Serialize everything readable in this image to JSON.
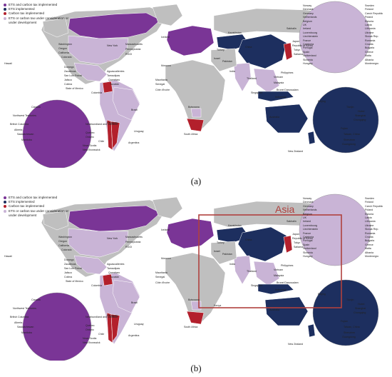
{
  "colors": {
    "ets_and_tax": "#7a3596",
    "ets": "#1d2f5f",
    "tax": "#b3202c",
    "consideration": "#c9b4d6",
    "none": "#bfbfbf",
    "ocean": "#ffffff",
    "asia_box": "#b0413e"
  },
  "legend": [
    {
      "key": "ets_and_tax",
      "label": "ETS and carbon tax implemented"
    },
    {
      "key": "ets",
      "label": "ETS implemented"
    },
    {
      "key": "tax",
      "label": "Carbon tax implemented"
    },
    {
      "key": "consideration",
      "label": "ETS or carbon tax under consideration or under development"
    }
  ],
  "panel_a": {
    "caption": "(a)",
    "labels": {
      "hawaii": "Hawaii",
      "washington": "Washington",
      "oregon": "Oregon",
      "california": "California",
      "colorado": "Colorado",
      "new_york": "New York",
      "massachusetts": "Massachusetts",
      "pennsylvania": "Pennsylvania",
      "rggi": "RGGI",
      "durango": "Durango",
      "zacatecas": "Zacatecas",
      "san_luis_potosi": "San Luis Potosí",
      "jalisco": "Jalisco",
      "colima": "Colima",
      "state_of_mexico": "State of Mexico",
      "aguascalientes": "Aguascalientes",
      "tamaulipas": "Tamaulipas",
      "queretaro": "Querétaro",
      "yucatan": "Yucatán",
      "colombia": "Colombia",
      "brazil": "Brazil",
      "paraguay": "Paraguay",
      "uruguay": "Uruguay",
      "chile": "Chile",
      "argentina": "Argentina",
      "iceland": "Iceland",
      "morocco": "Morocco",
      "mauritania": "Mauritania",
      "senegal": "Senegal",
      "cote_divoire": "Côte d'Ivoire",
      "botswana": "Botswana",
      "south_africa": "South Africa",
      "turkey": "Turkey",
      "israel": "Israel",
      "pakistan": "Pakistan",
      "india": "India",
      "kazakhstan": "Kazakhstan",
      "china": "China",
      "sakhalin": "Sakhalin",
      "japan": "Japan",
      "korea": "Republic of Korea",
      "tokyo": "Tokyo",
      "saitama": "Saitama",
      "thailand": "Thailand",
      "vietnam": "Vietnam",
      "philippines": "Philippines",
      "malaysia": "Malaysia",
      "singapore": "Singapore",
      "brunei": "Brunei Darussalam",
      "indonesia": "Indonesia",
      "australia": "Australia",
      "new_zealand": "New Zealand",
      "canada": "Canada",
      "nw_territories": "Northwest Territories",
      "british_columbia": "British Columbia",
      "alberta": "Alberta",
      "saskatchewan": "Saskatchewan",
      "manitoba": "Manitoba",
      "newfoundland": "Newfoundland and Labrador",
      "quebec": "Québec",
      "ontario": "Ontario",
      "nova_scotia": "Nova Scotia",
      "new_brunswick": "New Brunswick",
      "beijing": "Beijing",
      "tianjin": "Tianjin",
      "hubei": "Hubei",
      "shanghai": "Shanghai",
      "chongqing": "Chongqing",
      "fujian": "Fujian",
      "taiwan": "Taiwan, China",
      "shenzhen": "Shenzhen",
      "guangdong": "Guangdong"
    },
    "europe_left": [
      "Norway",
      "Denmark",
      "Germany",
      "Netherlands",
      "Belgium",
      "UK",
      "Ireland",
      "Luxembourg",
      "Liechtenstein",
      "France",
      "Catalonia",
      "Portugal",
      "Spain",
      "Switzerland",
      "Slovenia",
      "Hungary"
    ],
    "europe_right": [
      "Sweden",
      "Finland",
      "Czech Republic",
      "Poland",
      "Estonia",
      "Latvia",
      "Lithuania",
      "Ukraine",
      "Slovak Rep.",
      "Romania",
      "Croatia",
      "Bulgaria",
      "Greece",
      "Malta",
      "Albania",
      "Montenegro"
    ]
  },
  "panel_b": {
    "caption": "(b)",
    "asia_title": "Asia",
    "kenya": "Kenya"
  }
}
